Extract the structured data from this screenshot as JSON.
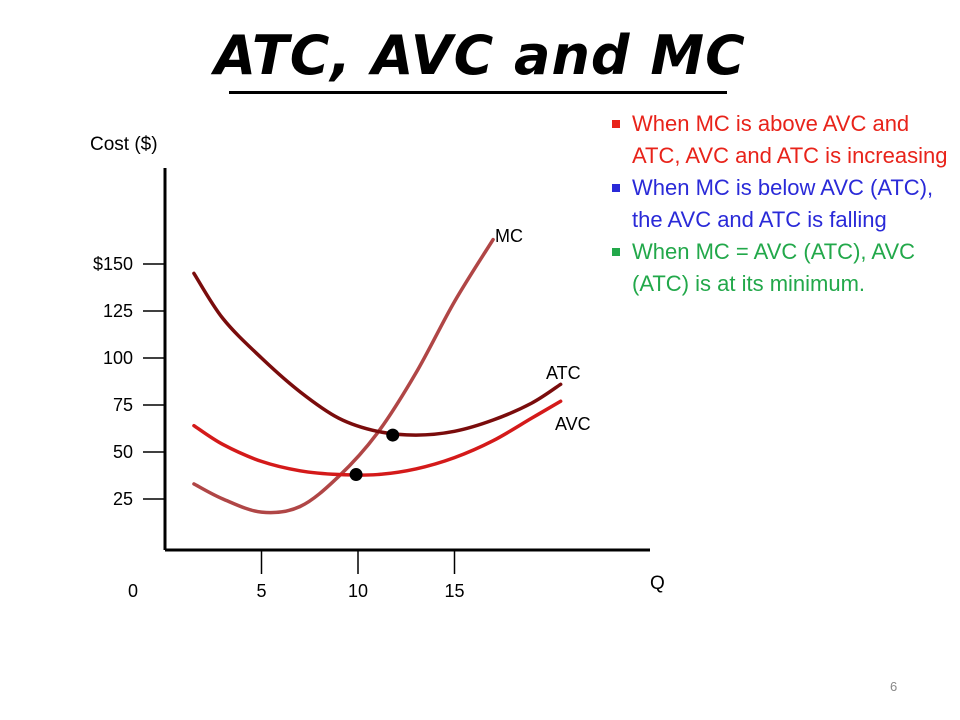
{
  "slide": {
    "title": "ATC, AVC and MC",
    "page_number": "6"
  },
  "bullets": [
    {
      "text": "When MC is above AVC  and ATC, AVC and ATC is increasing",
      "color": "#e8231a"
    },
    {
      "text": "When MC is below AVC (ATC), the AVC and ATC is falling",
      "color": "#2a2ad8"
    },
    {
      "text": "When MC = AVC (ATC),  AVC (ATC) is at its minimum.",
      "color": "#22a84a"
    }
  ],
  "chart_data": {
    "type": "line",
    "ylabel": "Cost ($)",
    "xlabel": "Q",
    "y_ticks": [
      "$150",
      "125",
      "100",
      "75",
      "50",
      "25"
    ],
    "x_ticks": [
      "0",
      "5",
      "10",
      "15"
    ],
    "series": [
      {
        "name": "MC",
        "color": "#b04646",
        "points": [
          [
            1.5,
            33
          ],
          [
            3,
            25
          ],
          [
            5,
            18
          ],
          [
            7,
            21
          ],
          [
            9,
            37
          ],
          [
            11,
            60
          ],
          [
            13,
            92
          ],
          [
            15,
            130
          ],
          [
            17,
            163
          ]
        ]
      },
      {
        "name": "ATC",
        "color": "#7a0c0c",
        "points": [
          [
            1.5,
            145
          ],
          [
            3,
            121
          ],
          [
            5,
            100
          ],
          [
            7,
            82
          ],
          [
            9,
            68
          ],
          [
            11,
            61
          ],
          [
            13,
            59
          ],
          [
            15,
            61
          ],
          [
            17,
            67
          ],
          [
            19,
            76
          ],
          [
            20.5,
            86
          ]
        ]
      },
      {
        "name": "AVC",
        "color": "#d41a1a",
        "points": [
          [
            1.5,
            64
          ],
          [
            3,
            54
          ],
          [
            5,
            45
          ],
          [
            7,
            40
          ],
          [
            9,
            38
          ],
          [
            11,
            38
          ],
          [
            13,
            41
          ],
          [
            15,
            47
          ],
          [
            17,
            56
          ],
          [
            19,
            68
          ],
          [
            20.5,
            77
          ]
        ]
      }
    ],
    "markers": [
      {
        "x": 11.8,
        "y": 59
      },
      {
        "x": 9.9,
        "y": 38
      }
    ]
  }
}
